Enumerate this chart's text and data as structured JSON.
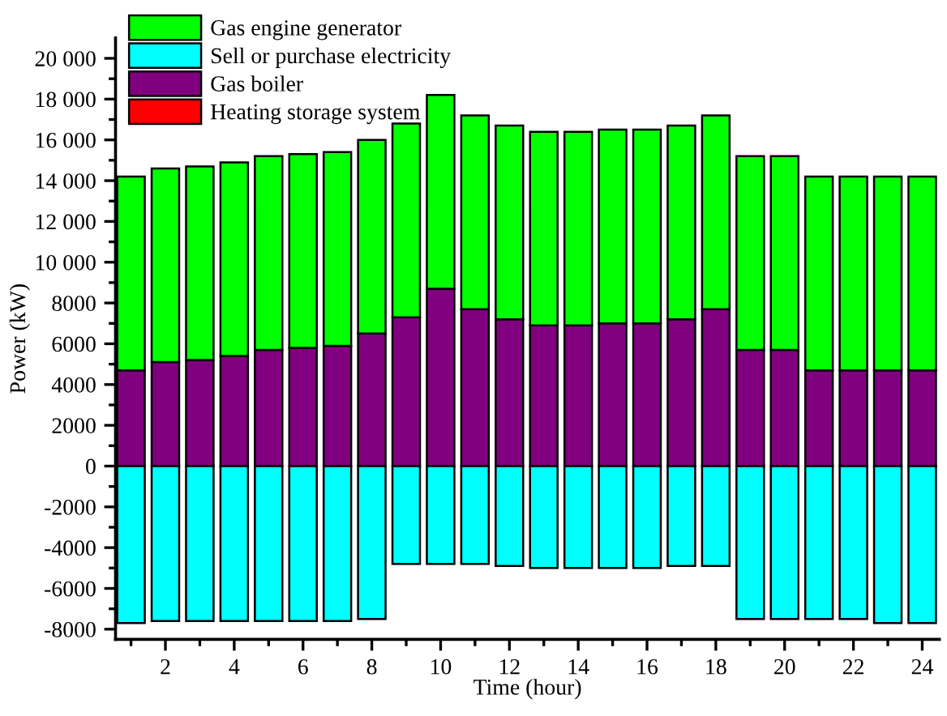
{
  "chart_data": {
    "type": "bar",
    "stacked": true,
    "xlabel": "Time (hour)",
    "ylabel": "Power (kW)",
    "x": [
      1,
      2,
      3,
      4,
      5,
      6,
      7,
      8,
      9,
      10,
      11,
      12,
      13,
      14,
      15,
      16,
      17,
      18,
      19,
      20,
      21,
      22,
      23,
      24
    ],
    "xlim": [
      0.55,
      24.5
    ],
    "xticks": [
      2,
      4,
      6,
      8,
      10,
      12,
      14,
      16,
      18,
      20,
      22,
      24
    ],
    "ylim": [
      -8500,
      21000
    ],
    "yticks": [
      {
        "value": -8000,
        "label": "-8000"
      },
      {
        "value": -6000,
        "label": "-6000"
      },
      {
        "value": -4000,
        "label": "-4000"
      },
      {
        "value": -2000,
        "label": "-2000"
      },
      0,
      {
        "value": 2000,
        "label": "2000"
      },
      {
        "value": 4000,
        "label": "4000"
      },
      {
        "value": 6000,
        "label": "6000"
      },
      {
        "value": 8000,
        "label": "8000"
      },
      {
        "value": 10000,
        "label": "10 000"
      },
      {
        "value": 12000,
        "label": "12 000"
      },
      {
        "value": 14000,
        "label": "14 000"
      },
      {
        "value": 16000,
        "label": "16 000"
      },
      {
        "value": 18000,
        "label": "18 000"
      },
      {
        "value": 20000,
        "label": "20 000"
      }
    ],
    "legend": "top left",
    "grid": false,
    "series": [
      {
        "name": "Heating storage system",
        "color": "#ff0000",
        "values": [
          0,
          0,
          0,
          0,
          0,
          0,
          0,
          0,
          0,
          0,
          0,
          0,
          0,
          0,
          0,
          0,
          0,
          0,
          0,
          0,
          0,
          0,
          0,
          0
        ]
      },
      {
        "name": "Gas boiler",
        "color": "#800080",
        "values": [
          4700,
          5100,
          5200,
          5400,
          5700,
          5800,
          5900,
          6500,
          7300,
          8700,
          7700,
          7200,
          6900,
          6900,
          7000,
          7000,
          7200,
          7700,
          5700,
          5700,
          4700,
          4700,
          4700,
          4700
        ]
      },
      {
        "name": "Gas engine generator",
        "color": "#00ff00",
        "values": [
          9500,
          9500,
          9500,
          9500,
          9500,
          9500,
          9500,
          9500,
          9500,
          9500,
          9500,
          9500,
          9500,
          9500,
          9500,
          9500,
          9500,
          9500,
          9500,
          9500,
          9500,
          9500,
          9500,
          9500
        ]
      },
      {
        "name": "Sell or purchase electricity",
        "color": "#00ffff",
        "values": [
          -7700,
          -7600,
          -7600,
          -7600,
          -7600,
          -7600,
          -7600,
          -7500,
          -4800,
          -4800,
          -4800,
          -4900,
          -5000,
          -5000,
          -5000,
          -5000,
          -4900,
          -4900,
          -7500,
          -7500,
          -7500,
          -7500,
          -7700,
          -7700
        ]
      }
    ]
  }
}
